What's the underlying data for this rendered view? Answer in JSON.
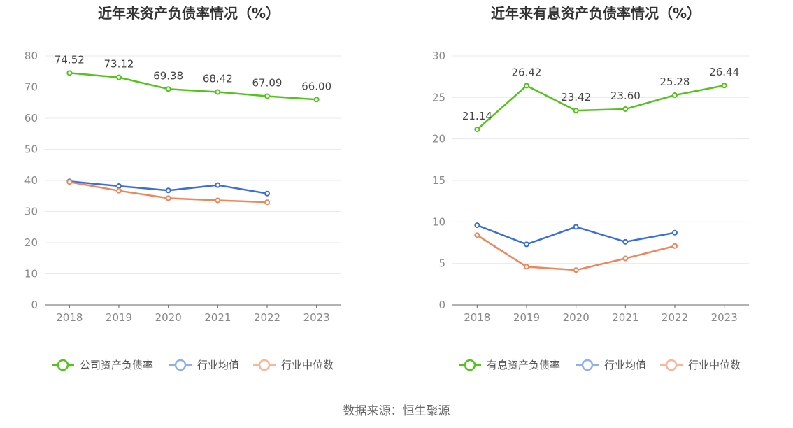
{
  "chart_data": [
    {
      "type": "line",
      "title": "近年来资产负债率情况（%）",
      "categories": [
        "2018",
        "2019",
        "2020",
        "2021",
        "2022",
        "2023"
      ],
      "ylim": [
        0,
        80
      ],
      "yticks": [
        "0",
        "10",
        "20",
        "30",
        "40",
        "50",
        "60",
        "70",
        "80"
      ],
      "grid": true,
      "legend_position": "bottom",
      "series": [
        {
          "name": "公司资产负债率",
          "color": "#52c41a",
          "values": [
            74.52,
            73.12,
            69.38,
            68.42,
            67.09,
            66.0
          ],
          "labels": [
            "74.52",
            "73.12",
            "69.38",
            "68.42",
            "67.09",
            "66.00"
          ]
        },
        {
          "name": "行业均值",
          "color": "#3a6fd8",
          "values": [
            39.7,
            38.2,
            36.8,
            38.5,
            35.8,
            null
          ]
        },
        {
          "name": "行业中位数",
          "color": "#f0845a",
          "values": [
            39.5,
            36.7,
            34.3,
            33.6,
            33.0,
            null
          ]
        }
      ]
    },
    {
      "type": "line",
      "title": "近年来有息资产负债率情况（%）",
      "categories": [
        "2018",
        "2019",
        "2020",
        "2021",
        "2022",
        "2023"
      ],
      "ylim": [
        0,
        30
      ],
      "yticks": [
        "0",
        "5",
        "10",
        "15",
        "20",
        "25",
        "30"
      ],
      "grid": true,
      "legend_position": "bottom",
      "series": [
        {
          "name": "有息资产负债率",
          "color": "#52c41a",
          "values": [
            21.14,
            26.42,
            23.42,
            23.6,
            25.28,
            26.44
          ],
          "labels": [
            "21.14",
            "26.42",
            "23.42",
            "23.60",
            "25.28",
            "26.44"
          ]
        },
        {
          "name": "行业均值",
          "color": "#3a6fd8",
          "values": [
            9.6,
            7.3,
            9.4,
            7.6,
            8.7,
            null
          ]
        },
        {
          "name": "行业中位数",
          "color": "#f0845a",
          "values": [
            8.4,
            4.6,
            4.2,
            5.6,
            7.1,
            null
          ]
        }
      ]
    }
  ],
  "legend_light_colors": [
    "#52c41a",
    "#8fb0ef",
    "#f9b69b"
  ],
  "source": "数据来源：恒生聚源"
}
